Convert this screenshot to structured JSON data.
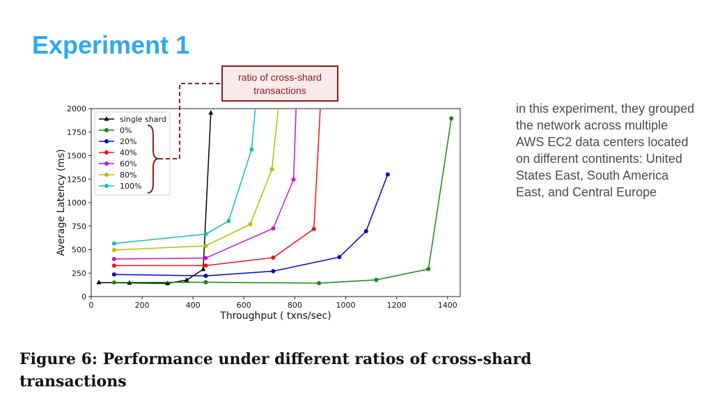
{
  "slide": {
    "title": "Experiment 1",
    "callout": "ratio of cross-shard transactions",
    "side_text": "in this experiment, they grouped the network across multiple AWS EC2 data centers located on different continents: United States East, South America East, and Central Europe",
    "caption": "Figure 6: Performance under different ratios of cross-shard transactions"
  },
  "colors": {
    "title": "#2ea8ef",
    "callout": "#8b1a1a"
  },
  "chart_data": {
    "type": "line",
    "xlabel": "Throughput ( txns/sec)",
    "ylabel": "Average Latency (ms)",
    "xlim": [
      0,
      1450
    ],
    "ylim": [
      0,
      2000
    ],
    "xticks": [
      0,
      200,
      400,
      600,
      800,
      1000,
      1200,
      1400
    ],
    "yticks": [
      0,
      250,
      500,
      750,
      1000,
      1250,
      1500,
      1750,
      2000
    ],
    "grid": false,
    "legend_position": "top-left",
    "series": [
      {
        "name": "single shard",
        "color": "#000000",
        "marker": "triangle",
        "x": [
          30,
          150,
          300,
          375,
          440,
          470
        ],
        "y": [
          150,
          145,
          140,
          175,
          290,
          1955
        ]
      },
      {
        "name": "0%",
        "color": "#118811",
        "marker": "circle",
        "x": [
          90,
          450,
          895,
          1120,
          1325,
          1415
        ],
        "y": [
          150,
          153,
          143,
          178,
          293,
          1895
        ]
      },
      {
        "name": "20%",
        "color": "#0000dd",
        "marker": "circle",
        "x": [
          90,
          450,
          715,
          975,
          1080,
          1165
        ],
        "y": [
          235,
          220,
          270,
          420,
          695,
          1300
        ]
      },
      {
        "name": "40%",
        "color": "#ee1111",
        "marker": "circle",
        "x": [
          90,
          450,
          715,
          875,
          900
        ],
        "y": [
          330,
          330,
          415,
          720,
          2000
        ]
      },
      {
        "name": "60%",
        "color": "#cc11cc",
        "marker": "circle",
        "x": [
          90,
          450,
          715,
          795,
          805
        ],
        "y": [
          400,
          410,
          725,
          1245,
          2000
        ]
      },
      {
        "name": "80%",
        "color": "#bbbb00",
        "marker": "circle",
        "x": [
          90,
          450,
          625,
          710,
          735
        ],
        "y": [
          495,
          540,
          770,
          1355,
          2000
        ]
      },
      {
        "name": "100%",
        "color": "#11bbbb",
        "marker": "circle",
        "x": [
          90,
          450,
          540,
          630,
          645
        ],
        "y": [
          565,
          665,
          805,
          1565,
          2000
        ]
      }
    ]
  }
}
